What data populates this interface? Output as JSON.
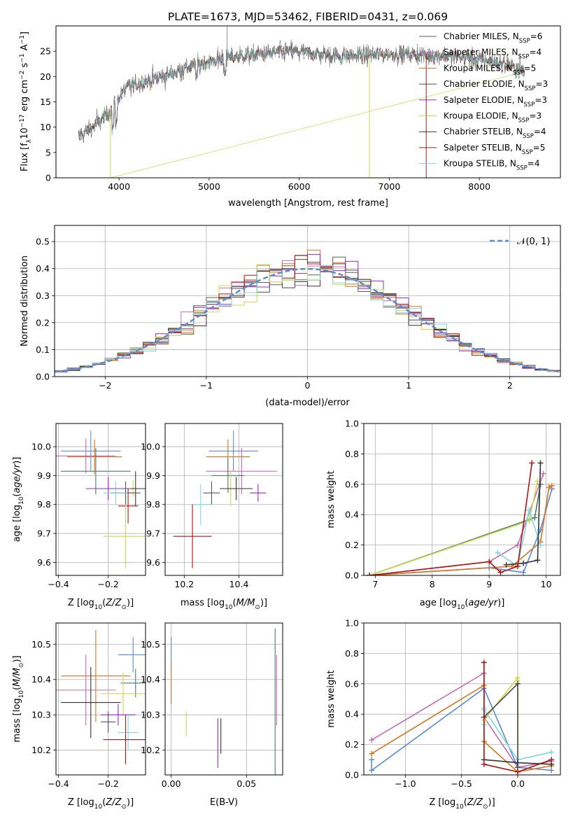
{
  "figure": {
    "title": "PLATE=1673, MJD=53462, FIBERID=0431, z=0.069"
  },
  "colors": {
    "Chabrier MILES": "#5b5b5b",
    "Salpeter MILES": "#c66bb8",
    "Kroupa MILES": "#d6741a",
    "Chabrier ELODIE": "#4a4a4a",
    "Salpeter ELODIE": "#9a28c4",
    "Kroupa ELODIE": "#cdd84a",
    "Chabrier STELIB": "#333333",
    "Salpeter STELIB": "#b01515",
    "Kroupa STELIB": "#7fd8dc",
    "gaussian": "#5b8bd6"
  },
  "chart_data": [
    {
      "id": "spectrum",
      "type": "line",
      "xlabel": "wavelength [Angstrom, rest frame]",
      "ylabel": "Flux [f_λ10^-17 erg cm^-2 s^-1 A^-1]",
      "xlim": [
        3300,
        8900
      ],
      "ylim": [
        0,
        30
      ],
      "xticks": [
        4000,
        5000,
        6000,
        7000,
        8000
      ],
      "yticks": [
        0,
        5,
        10,
        15,
        20,
        25
      ],
      "legend_position": "top-right",
      "series": [
        {
          "name": "Chabrier MILES, N_SSP=6",
          "label": "Chabrier MILES, N",
          "nssp": "=6"
        },
        {
          "name": "Salpeter MILES, N_SSP=4",
          "label": "Salpeter MILES, N",
          "nssp": "=4"
        },
        {
          "name": "Kroupa MILES, N_SSP=5",
          "label": "Kroupa MILES, N",
          "nssp": "=5"
        },
        {
          "name": "Chabrier ELODIE, N_SSP=3",
          "label": "Chabrier ELODIE, N",
          "nssp": "=3"
        },
        {
          "name": "Salpeter ELODIE, N_SSP=3",
          "label": "Salpeter ELODIE, N",
          "nssp": "=3"
        },
        {
          "name": "Kroupa ELODIE, N_SSP=3",
          "label": "Kroupa ELODIE, N",
          "nssp": "=3"
        },
        {
          "name": "Chabrier STELIB, N_SSP=4",
          "label": "Chabrier STELIB, N",
          "nssp": "=4"
        },
        {
          "name": "Salpeter STELIB, N_SSP=5",
          "label": "Salpeter STELIB, N",
          "nssp": "=5"
        },
        {
          "name": "Kroupa STELIB, N_SSP=4",
          "label": "Kroupa STELIB, N",
          "nssp": "=4"
        }
      ],
      "continuum": {
        "x": [
          3550,
          3700,
          3900,
          4000,
          4100,
          4300,
          4500,
          4800,
          5000,
          5300,
          5600,
          5900,
          6200,
          6500,
          6800,
          7100,
          7400,
          7700,
          8000,
          8300,
          8500
        ],
        "y": [
          8,
          10,
          13,
          16,
          18,
          19,
          20,
          22,
          23,
          24,
          24.5,
          25,
          24.5,
          24,
          24.3,
          24.5,
          24.3,
          24,
          23.5,
          22.5,
          21
        ]
      }
    },
    {
      "id": "residuals",
      "type": "step",
      "xlabel": "(data-model)/error",
      "ylabel": "Normed distribution",
      "xlim": [
        -2.5,
        2.5
      ],
      "ylim": [
        0,
        0.56
      ],
      "xticks": [
        -2,
        -1,
        0,
        1,
        2
      ],
      "xtick_labels": [
        "−2",
        "−1",
        "0",
        "1",
        "2"
      ],
      "yticks": [
        0,
        0.1,
        0.2,
        0.3,
        0.4,
        0.5
      ],
      "legend": "𝒩(0, 1)",
      "bins": 40
    },
    {
      "id": "age_vs_Z",
      "type": "errorbar",
      "xlabel": "Z [log10(Z/Z⊙)]",
      "ylabel": "age  [log10(age/yr)]",
      "xlim": [
        -0.41,
        -0.05
      ],
      "ylim": [
        9.555,
        10.08
      ],
      "xticks": [
        -0.4,
        -0.2
      ],
      "xtick_labels": [
        "−0.4",
        "−0.2"
      ],
      "yticks": [
        9.6,
        9.7,
        9.8,
        9.9,
        10.0
      ],
      "points": [
        {
          "x": -0.27,
          "xerr": 0.12,
          "y": 9.985,
          "yerr": 0.07
        },
        {
          "x": -0.255,
          "xerr": 0.11,
          "y": 9.965,
          "yerr": 0.06
        },
        {
          "x": -0.29,
          "xerr": 0.12,
          "y": 9.968,
          "yerr": 0.06
        },
        {
          "x": -0.25,
          "xerr": 0.14,
          "y": 9.915,
          "yerr": 0.08
        },
        {
          "x": -0.1,
          "xerr": 0.05,
          "y": 9.855,
          "yerr": 0.03
        },
        {
          "x": -0.09,
          "xerr": 0.06,
          "y": 9.855,
          "yerr": 0.06
        },
        {
          "x": -0.2,
          "xerr": 0.09,
          "y": 9.855,
          "yerr": 0.04
        },
        {
          "x": -0.13,
          "xerr": 0.06,
          "y": 9.84,
          "yerr": 0.04
        },
        {
          "x": -0.17,
          "xerr": 0.05,
          "y": 9.84,
          "yerr": 0.04
        },
        {
          "x": -0.12,
          "xerr": 0.04,
          "y": 9.795,
          "yerr": 0.06
        },
        {
          "x": -0.13,
          "xerr": 0.09,
          "y": 9.69,
          "yerr": 0.11
        }
      ]
    },
    {
      "id": "age_vs_mass",
      "type": "errorbar",
      "xlabel": "mass [log10(M/M⊙)]",
      "ylabel": "",
      "xlim": [
        10.13,
        10.56
      ],
      "ylim": [
        9.555,
        10.08
      ],
      "xticks": [
        10.2,
        10.4
      ],
      "yticks": [
        9.6,
        9.7,
        9.8,
        9.9,
        10.0
      ],
      "points": [
        {
          "x": 10.38,
          "xerr": 0.09,
          "y": 9.985,
          "yerr": 0.07
        },
        {
          "x": 10.36,
          "xerr": 0.08,
          "y": 9.965,
          "yerr": 0.06
        },
        {
          "x": 10.41,
          "xerr": 0.13,
          "y": 9.915,
          "yerr": 0.08
        },
        {
          "x": 10.36,
          "xerr": 0.06,
          "y": 9.9,
          "yerr": 0.06
        },
        {
          "x": 10.37,
          "xerr": 0.04,
          "y": 9.855,
          "yerr": 0.06
        },
        {
          "x": 10.39,
          "xerr": 0.06,
          "y": 9.855,
          "yerr": 0.04
        },
        {
          "x": 10.47,
          "xerr": 0.03,
          "y": 9.84,
          "yerr": 0.03
        },
        {
          "x": 10.3,
          "xerr": 0.03,
          "y": 9.84,
          "yerr": 0.04
        },
        {
          "x": 10.26,
          "xerr": 0.04,
          "y": 9.8,
          "yerr": 0.07
        },
        {
          "x": 10.23,
          "xerr": 0.07,
          "y": 9.69,
          "yerr": 0.11
        }
      ]
    },
    {
      "id": "weight_vs_age",
      "type": "line",
      "xlabel": "age  [log10(age/yr)]",
      "ylabel": "mass weight",
      "xlim": [
        6.8,
        10.25
      ],
      "ylim": [
        0,
        1
      ],
      "xticks": [
        7,
        8,
        9,
        10
      ],
      "yticks": [
        0,
        0.2,
        0.4,
        0.6,
        0.8,
        1.0
      ],
      "series": [
        {
          "color": "#5b8bd6",
          "x": [
            6.9,
            9.0,
            9.6,
            9.9,
            10.1
          ],
          "y": [
            0.0,
            0.05,
            0.02,
            0.3,
            0.57
          ]
        },
        {
          "color": "#d6741a",
          "x": [
            6.9,
            9.4,
            9.9,
            10.05,
            10.1
          ],
          "y": [
            0.0,
            0.06,
            0.22,
            0.58,
            0.59
          ]
        },
        {
          "color": "#c66bb8",
          "x": [
            6.9,
            9.0,
            9.5,
            9.95
          ],
          "y": [
            0.0,
            0.09,
            0.2,
            0.67
          ]
        },
        {
          "color": "#4a7a6a",
          "x": [
            6.9,
            9.8,
            9.9
          ],
          "y": [
            0.0,
            0.38,
            0.6
          ]
        },
        {
          "color": "#cdd84a",
          "x": [
            6.9,
            9.7,
            9.85
          ],
          "y": [
            0.0,
            0.36,
            0.62
          ]
        },
        {
          "color": "#7fd8dc",
          "x": [
            9.15,
            9.5,
            9.7,
            9.9
          ],
          "y": [
            0.15,
            0.06,
            0.43,
            0.2
          ]
        },
        {
          "color": "#333333",
          "x": [
            9.3,
            9.6,
            9.85,
            9.9
          ],
          "y": [
            0.07,
            0.08,
            0.1,
            0.74
          ]
        },
        {
          "color": "#b01515",
          "x": [
            6.9,
            9.0,
            9.2,
            9.5,
            9.75
          ],
          "y": [
            0.0,
            0.09,
            0.02,
            0.06,
            0.74
          ]
        }
      ]
    },
    {
      "id": "mass_vs_Z",
      "type": "errorbar",
      "xlabel": "Z [log10(Z/Z⊙)]",
      "ylabel": "mass [log10(M/M⊙)]",
      "xlim": [
        -0.41,
        -0.05
      ],
      "ylim": [
        10.13,
        10.56
      ],
      "xticks": [
        -0.4,
        -0.2
      ],
      "xtick_labels": [
        "−0.4",
        "−0.2"
      ],
      "yticks": [
        10.2,
        10.3,
        10.4,
        10.5
      ],
      "points": [
        {
          "x": -0.1,
          "xerr": 0.06,
          "y": 10.47,
          "yerr": 0.05
        },
        {
          "x": -0.25,
          "xerr": 0.14,
          "y": 10.41,
          "yerr": 0.13
        },
        {
          "x": -0.29,
          "xerr": 0.12,
          "y": 10.37,
          "yerr": 0.1
        },
        {
          "x": -0.09,
          "xerr": 0.06,
          "y": 10.39,
          "yerr": 0.04
        },
        {
          "x": -0.14,
          "xerr": 0.09,
          "y": 10.36,
          "yerr": 0.06
        },
        {
          "x": -0.27,
          "xerr": 0.12,
          "y": 10.335,
          "yerr": 0.1
        },
        {
          "x": -0.16,
          "xerr": 0.07,
          "y": 10.3,
          "yerr": 0.03
        },
        {
          "x": -0.2,
          "xerr": 0.03,
          "y": 10.28,
          "yerr": 0.03
        },
        {
          "x": -0.12,
          "xerr": 0.04,
          "y": 10.25,
          "yerr": 0.05
        },
        {
          "x": -0.13,
          "xerr": 0.09,
          "y": 10.23,
          "yerr": 0.07
        }
      ]
    },
    {
      "id": "mass_vs_ebv",
      "type": "errorbar",
      "xlabel": "E(B-V)",
      "ylabel": "",
      "xlim": [
        -0.004,
        0.074
      ],
      "ylim": [
        10.13,
        10.56
      ],
      "xticks": [
        0.0,
        0.05
      ],
      "xtick_labels": [
        "0.00",
        "0.05"
      ],
      "yticks": [
        10.2,
        10.3,
        10.4,
        10.5
      ],
      "points": [
        {
          "x": 0.0,
          "y": 10.47,
          "yerr": 0.05
        },
        {
          "x": 0.0,
          "y": 10.39,
          "yerr": 0.06
        },
        {
          "x": 0.07,
          "y": 10.37,
          "yerr": 0.1
        },
        {
          "x": 0.069,
          "y": 10.335,
          "yerr": 0.21
        },
        {
          "x": 0.01,
          "y": 10.275,
          "yerr": 0.035
        },
        {
          "x": 0.033,
          "y": 10.24,
          "yerr": 0.05
        },
        {
          "x": 0.031,
          "y": 10.22,
          "yerr": 0.07
        }
      ]
    },
    {
      "id": "weight_vs_Z",
      "type": "line",
      "xlabel": "Z [log10(Z/Z⊙)]",
      "ylabel": "mass weight",
      "xlim": [
        -1.37,
        0.38
      ],
      "ylim": [
        0,
        1
      ],
      "xticks": [
        -1.0,
        -0.5,
        0.0
      ],
      "xtick_labels": [
        "−1.0",
        "−0.5",
        "0.0"
      ],
      "yticks": [
        0,
        0.2,
        0.4,
        0.6,
        0.8,
        1.0
      ],
      "series": [
        {
          "color": "#5b8bd6",
          "x": [
            -1.3,
            -1.3,
            -0.3,
            0.0,
            0.3
          ],
          "y": [
            0.1,
            0.03,
            0.57,
            0.05,
            0.03
          ]
        },
        {
          "color": "#d6741a",
          "x": [
            -1.3,
            -0.3,
            -0.3,
            0.0,
            0.3
          ],
          "y": [
            0.14,
            0.59,
            0.22,
            0.02,
            0.06
          ]
        },
        {
          "color": "#c66bb8",
          "x": [
            -1.3,
            -0.3,
            -0.3,
            0.0,
            0.3
          ],
          "y": [
            0.23,
            0.67,
            0.38,
            0.05,
            0.09
          ]
        },
        {
          "color": "#7fd8dc",
          "x": [
            -0.3,
            -0.3,
            -0.3,
            0.0,
            0.3
          ],
          "y": [
            0.44,
            0.33,
            0.43,
            0.1,
            0.15
          ]
        },
        {
          "color": "#cdd84a",
          "x": [
            -0.3,
            0.0,
            0.0,
            0.0
          ],
          "y": [
            0.36,
            0.64,
            0.62,
            0.0
          ]
        },
        {
          "color": "#4a4a4a",
          "x": [
            -0.3,
            0.0,
            0.0
          ],
          "y": [
            0.38,
            0.6,
            0.05
          ]
        },
        {
          "color": "#333333",
          "x": [
            -0.3,
            -0.3,
            0.0,
            0.3
          ],
          "y": [
            0.74,
            0.1,
            0.08,
            0.07
          ]
        },
        {
          "color": "#b01515",
          "x": [
            -0.3,
            -0.3,
            0.0,
            0.3
          ],
          "y": [
            0.74,
            0.07,
            0.02,
            0.1
          ]
        }
      ]
    }
  ]
}
